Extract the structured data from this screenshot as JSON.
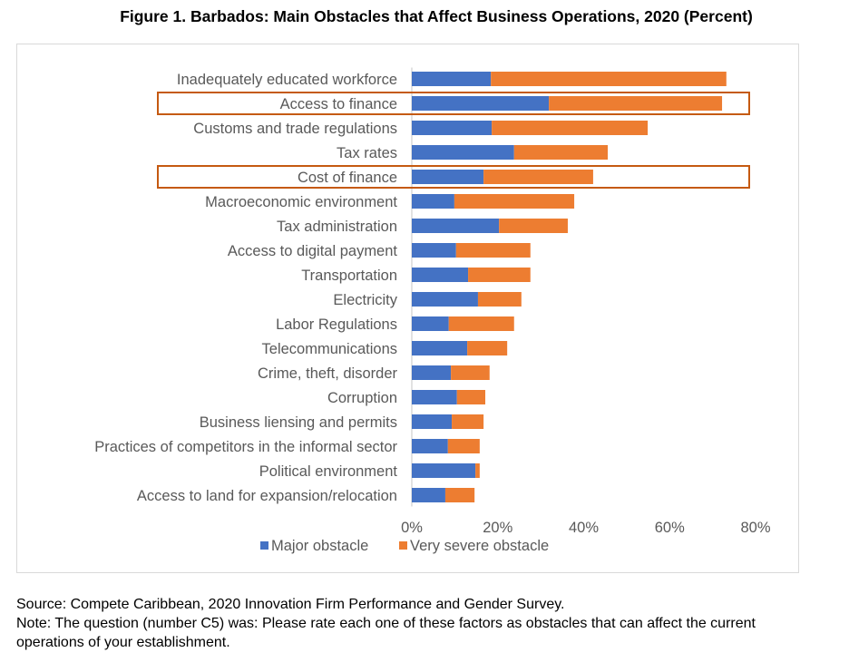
{
  "title": "Figure 1. Barbados: Main Obstacles that Affect Business Operations, 2020 (Percent)",
  "source": "Source: Compete Caribbean, 2020 Innovation Firm Performance and Gender Survey.",
  "note_line1": "Note: The question (number C5) was: Please rate each one of these factors as obstacles that can affect the current",
  "note_line2": "operations of your establishment.",
  "colors": {
    "major": "#4472c4",
    "severe": "#ed7d31",
    "highlight": "#c55a11",
    "axis": "#d9d9d9",
    "label": "#595959"
  },
  "chart_data": {
    "type": "bar",
    "orientation": "horizontal",
    "stacked": true,
    "title": "Figure 1. Barbados: Main Obstacles that Affect Business Operations, 2020 (Percent)",
    "xlabel": "",
    "ylabel": "",
    "xlim": [
      0,
      80
    ],
    "x_ticks": [
      "0%",
      "20%",
      "40%",
      "60%",
      "80%"
    ],
    "x_tick_values": [
      0,
      20,
      40,
      60,
      80
    ],
    "grid": false,
    "legend_position": "bottom",
    "categories": [
      "Inadequately educated workforce",
      "Access to finance",
      "Customs and trade regulations",
      "Tax rates",
      "Cost of finance",
      "Macroeconomic environment",
      "Tax administration",
      "Access to digital payment",
      "Transportation",
      "Electricity",
      "Labor Regulations",
      "Telecommunications",
      "Crime, theft, disorder",
      "Corruption",
      "Business liensing and permits",
      "Practices of competitors in the informal sector",
      "Political environment",
      "Access to land for expansion/relocation"
    ],
    "series": [
      {
        "name": "Major obstacle",
        "color": "#4472c4",
        "values": [
          18.4,
          31.9,
          18.6,
          23.8,
          16.7,
          9.9,
          20.3,
          10.3,
          13.1,
          15.4,
          8.6,
          12.9,
          9.1,
          10.5,
          9.3,
          8.4,
          14.8,
          7.8
        ]
      },
      {
        "name": "Very severe obstacle",
        "color": "#ed7d31",
        "values": [
          54.8,
          40.3,
          36.3,
          21.8,
          25.5,
          27.9,
          16.0,
          17.3,
          14.5,
          10.1,
          15.2,
          9.3,
          9.0,
          6.6,
          7.4,
          7.4,
          1.0,
          6.8
        ]
      }
    ],
    "highlighted_categories": [
      "Access to finance",
      "Cost of finance"
    ]
  }
}
